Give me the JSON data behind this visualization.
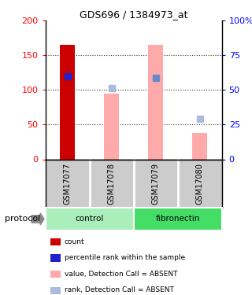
{
  "title": "GDS696 / 1384973_at",
  "samples": [
    "GSM17077",
    "GSM17078",
    "GSM17079",
    "GSM17080"
  ],
  "bar_values": [
    165,
    95,
    165,
    38
  ],
  "bar_colors": [
    "#cc0000",
    "#ffaaaa",
    "#ffaaaa",
    "#ffaaaa"
  ],
  "marker_values": [
    120,
    103,
    118,
    58
  ],
  "marker_colors": [
    "#2222cc",
    "#aabbdd",
    "#6688cc",
    "#aabbdd"
  ],
  "ylim_left": [
    0,
    200
  ],
  "ylim_right": [
    0,
    100
  ],
  "yticks_left": [
    0,
    50,
    100,
    150,
    200
  ],
  "yticks_right": [
    0,
    25,
    50,
    75,
    100
  ],
  "ytick_labels_right": [
    "0",
    "25",
    "50",
    "75",
    "100%"
  ],
  "groups": [
    {
      "label": "control",
      "samples": [
        0,
        1
      ],
      "color": "#aaeebb"
    },
    {
      "label": "fibronectin",
      "samples": [
        2,
        3
      ],
      "color": "#44dd66"
    }
  ],
  "protocol_label": "protocol",
  "legend_items": [
    {
      "label": "count",
      "color": "#cc0000"
    },
    {
      "label": "percentile rank within the sample",
      "color": "#2222cc"
    },
    {
      "label": "value, Detection Call = ABSENT",
      "color": "#ffaaaa"
    },
    {
      "label": "rank, Detection Call = ABSENT",
      "color": "#aabbdd"
    }
  ],
  "bar_width": 0.35,
  "marker_size": 6,
  "dotted_line_color": "#333333",
  "background_color": "#ffffff",
  "plot_bg_color": "#ffffff",
  "sample_label_bg": "#cccccc",
  "fig_width": 3.2,
  "fig_height": 3.75
}
